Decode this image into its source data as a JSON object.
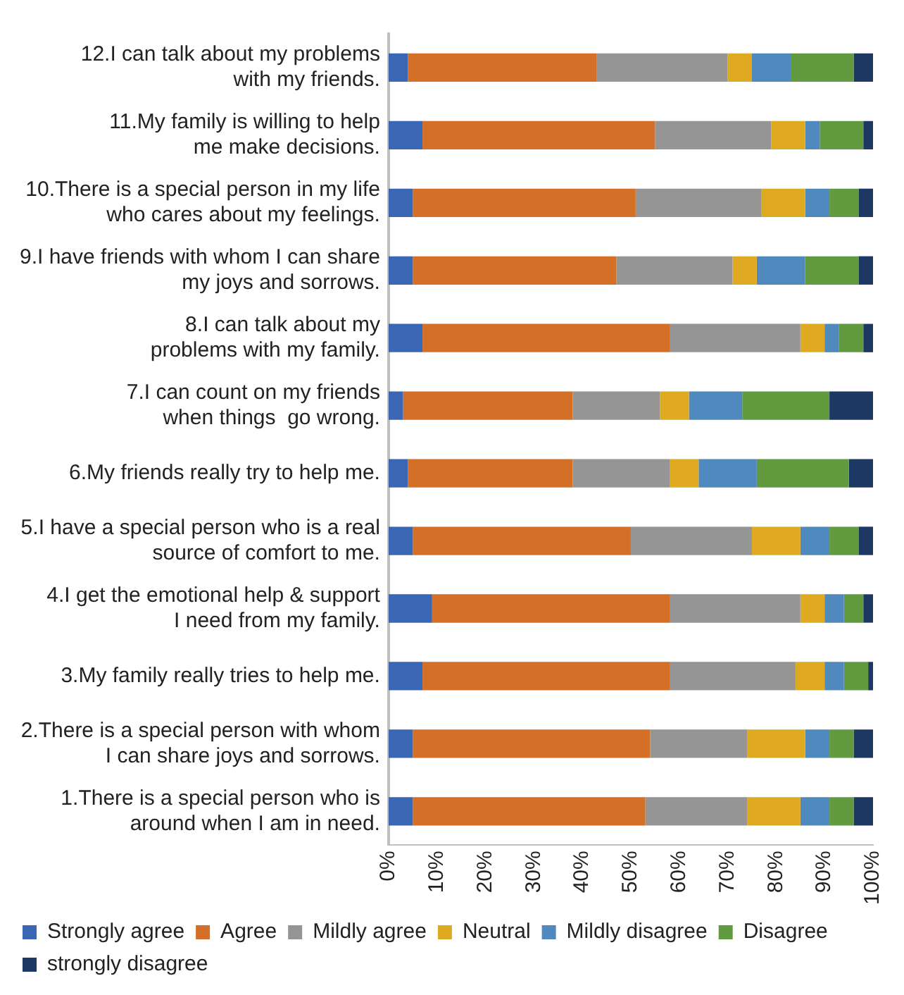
{
  "chart_data": {
    "type": "bar",
    "orientation": "horizontal",
    "stacked": true,
    "legend": "bottom",
    "grid": false,
    "categories": [
      "12.I can talk about my problems\nwith my friends.",
      "11.My family is willing to help\nme make decisions.",
      "10.There is a special person in my life\nwho cares about my feelings.",
      "9.I have friends with whom I can share\nmy joys and sorrows.",
      "8.I can talk about my\nproblems with my family.",
      "7.I can count on my friends\nwhen things  go wrong.",
      "6.My friends really try to help me.",
      "5.I have a special person who is a real\nsource of comfort to me.",
      "4.I get the emotional help & support\nI need from my family.",
      "3.My family really tries to help me.",
      "2.There is a special person with whom\nI can share joys and sorrows.",
      "1.There is a special person who is\naround when I am in need."
    ],
    "series": [
      {
        "name": "Strongly agree",
        "color": "#3a66b3",
        "values": [
          4,
          7,
          5,
          5,
          7,
          3,
          4,
          5,
          9,
          7,
          5,
          5
        ]
      },
      {
        "name": "Agree",
        "color": "#d46f28",
        "values": [
          39,
          48,
          46,
          42,
          51,
          35,
          34,
          45,
          49,
          51,
          49,
          48
        ]
      },
      {
        "name": "Mildly agree",
        "color": "#959595",
        "values": [
          27,
          24,
          26,
          24,
          27,
          18,
          20,
          25,
          27,
          26,
          20,
          21
        ]
      },
      {
        "name": "Neutral",
        "color": "#e0a922",
        "values": [
          5,
          7,
          9,
          5,
          5,
          6,
          6,
          10,
          5,
          6,
          12,
          11
        ]
      },
      {
        "name": "Mildly disagree",
        "color": "#4f89bd",
        "values": [
          8,
          3,
          5,
          10,
          3,
          11,
          12,
          6,
          4,
          4,
          5,
          6
        ]
      },
      {
        "name": "Disagree",
        "color": "#629a40",
        "values": [
          13,
          9,
          6,
          11,
          5,
          18,
          19,
          6,
          4,
          5,
          5,
          5
        ]
      },
      {
        "name": "strongly disagree",
        "color": "#1c3863",
        "values": [
          4,
          2,
          3,
          3,
          2,
          9,
          5,
          3,
          2,
          1,
          4,
          4
        ]
      }
    ],
    "xlim": [
      0,
      100
    ],
    "xticks": [
      {
        "value": 0,
        "label": "0%"
      },
      {
        "value": 10,
        "label": "10%"
      },
      {
        "value": 20,
        "label": "20%"
      },
      {
        "value": 30,
        "label": "30%"
      },
      {
        "value": 40,
        "label": "40%"
      },
      {
        "value": 50,
        "label": "50%"
      },
      {
        "value": 60,
        "label": "60%"
      },
      {
        "value": 70,
        "label": "70%"
      },
      {
        "value": 80,
        "label": "80%"
      },
      {
        "value": 90,
        "label": "90%"
      },
      {
        "value": 100,
        "label": "100%"
      }
    ]
  }
}
